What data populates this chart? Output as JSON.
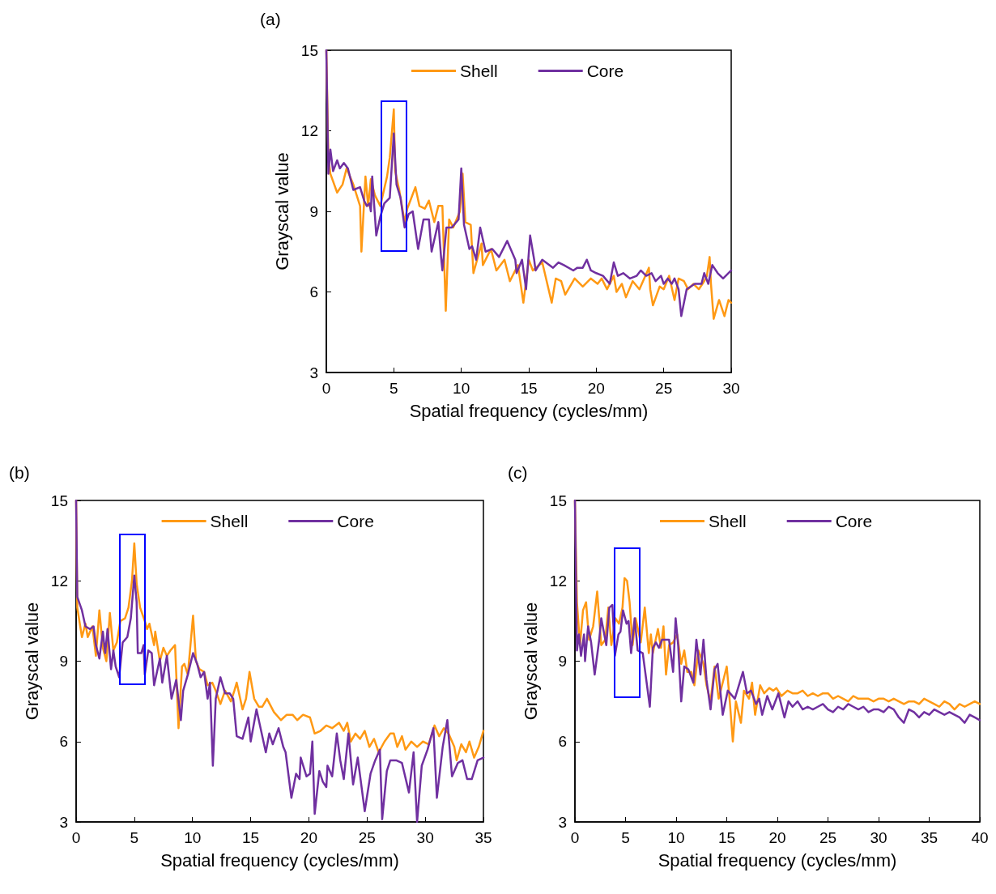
{
  "chart_data": [
    {
      "type": "line",
      "title": "(a)",
      "xlabel": "Spatial frequency (cycles/mm)",
      "ylabel": "Grayscal value",
      "xlim": [
        0,
        30
      ],
      "ylim": [
        3,
        15
      ],
      "xticks": [
        0,
        5,
        10,
        15,
        20,
        25,
        30
      ],
      "yticks": [
        3,
        6,
        9,
        12,
        15
      ],
      "legend": "top",
      "marker": "none",
      "line_style": "solid",
      "series": [
        {
          "name": "Shell",
          "color": "#ff9914",
          "x": [
            0,
            0.15,
            0.3,
            0.8,
            1.2,
            1.5,
            2.0,
            2.5,
            2.6,
            2.9,
            3.1,
            3.3,
            3.6,
            4.0,
            4.5,
            4.7,
            5.0,
            5.1,
            5.4,
            5.8,
            6.0,
            6.6,
            6.9,
            7.3,
            7.6,
            8.0,
            8.3,
            8.6,
            8.85,
            9.1,
            9.4,
            9.9,
            10.1,
            10.3,
            10.7,
            10.9,
            11.5,
            11.6,
            12.2,
            12.6,
            13.2,
            13.6,
            14.2,
            14.6,
            15.0,
            15.3,
            16.0,
            16.7,
            17.0,
            17.4,
            17.7,
            18.4,
            19.0,
            19.6,
            20.1,
            20.4,
            20.8,
            21.3,
            21.5,
            21.9,
            22.2,
            22.7,
            23.2,
            23.9,
            24.0,
            24.2,
            24.7,
            25.0,
            25.4,
            25.8,
            26.1,
            26.5,
            26.8,
            27.2,
            27.6,
            28.0,
            28.2,
            28.4,
            28.5,
            28.7,
            29.1,
            29.5,
            29.8,
            30
          ],
          "values": [
            15,
            11.0,
            10.4,
            9.7,
            10.0,
            10.6,
            10.0,
            9.2,
            7.5,
            10.3,
            9.2,
            10.2,
            9.6,
            9.2,
            10.3,
            11.0,
            12.8,
            10.5,
            9.8,
            8.6,
            9.1,
            9.9,
            9.2,
            9.1,
            9.4,
            8.6,
            9.2,
            9.2,
            5.3,
            8.7,
            8.4,
            9.0,
            10.4,
            8.6,
            8.5,
            6.7,
            7.8,
            7.0,
            7.6,
            6.8,
            7.2,
            6.4,
            7.0,
            5.6,
            7.2,
            6.8,
            7.1,
            5.6,
            6.5,
            6.4,
            5.9,
            6.5,
            6.2,
            6.5,
            6.3,
            6.5,
            6.1,
            6.6,
            6.0,
            6.3,
            5.8,
            6.4,
            6.1,
            6.9,
            6.1,
            5.5,
            6.2,
            6.1,
            6.6,
            5.7,
            6.5,
            6.4,
            6.1,
            6.3,
            6.1,
            6.4,
            6.6,
            7.3,
            6.3,
            5.0,
            5.7,
            5.1,
            5.7,
            5.6
          ]
        },
        {
          "name": "Core",
          "color": "#7030a0",
          "x": [
            0,
            0.15,
            0.3,
            0.5,
            0.8,
            1.0,
            1.3,
            1.6,
            2.0,
            2.5,
            2.8,
            3.0,
            3.2,
            3.3,
            3.4,
            3.7,
            4.0,
            4.3,
            4.7,
            5.0,
            5.2,
            5.5,
            5.8,
            6.1,
            6.4,
            6.8,
            7.2,
            7.6,
            7.8,
            8.3,
            8.5,
            8.6,
            8.9,
            9.3,
            9.8,
            10.0,
            10.2,
            10.6,
            10.8,
            11.1,
            11.4,
            11.8,
            12.3,
            12.8,
            13.2,
            13.4,
            14.0,
            14.1,
            14.5,
            14.8,
            15.1,
            15.4,
            15.5,
            16.0,
            16.8,
            17.2,
            17.6,
            18.3,
            18.6,
            19.0,
            19.3,
            19.6,
            20.0,
            20.5,
            21.0,
            21.3,
            21.6,
            22.0,
            22.5,
            23.0,
            23.3,
            23.7,
            24.1,
            24.4,
            24.8,
            25.0,
            25.3,
            25.6,
            25.8,
            26.1,
            26.3,
            26.7,
            27.3,
            27.8,
            28.0,
            28.3,
            28.6,
            29.0,
            29.4,
            30
          ],
          "values": [
            15,
            10.4,
            11.3,
            10.5,
            10.9,
            10.6,
            10.8,
            10.6,
            9.8,
            9.9,
            9.4,
            9.2,
            9.3,
            9.0,
            10.3,
            8.1,
            8.8,
            9.3,
            9.5,
            11.9,
            10.0,
            9.5,
            8.4,
            8.9,
            9.0,
            7.6,
            8.7,
            8.7,
            7.5,
            8.6,
            7.3,
            6.8,
            8.4,
            8.4,
            8.7,
            10.6,
            8.5,
            7.6,
            7.7,
            7.2,
            8.4,
            7.5,
            7.6,
            7.3,
            7.7,
            7.9,
            7.2,
            6.7,
            7.2,
            6.1,
            8.1,
            7.2,
            6.8,
            7.2,
            6.9,
            7.1,
            7.0,
            6.8,
            6.9,
            6.9,
            7.2,
            6.8,
            6.7,
            6.6,
            6.3,
            7.1,
            6.6,
            6.7,
            6.5,
            6.6,
            6.8,
            6.6,
            6.7,
            6.4,
            6.6,
            6.3,
            6.5,
            6.3,
            6.5,
            6.1,
            5.1,
            6.1,
            6.3,
            6.3,
            6.7,
            6.3,
            7.0,
            6.7,
            6.5,
            6.8
          ]
        }
      ]
    },
    {
      "type": "line",
      "title": "(b)",
      "xlabel": "Spatial frequency (cycles/mm)",
      "ylabel": "Grayscal value",
      "xlim": [
        0,
        35
      ],
      "ylim": [
        3,
        15
      ],
      "xticks": [
        0,
        5,
        10,
        15,
        20,
        25,
        30,
        35
      ],
      "yticks": [
        3,
        6,
        9,
        12,
        15
      ],
      "legend": "top",
      "marker": "none",
      "line_style": "solid",
      "series": [
        {
          "name": "Shell",
          "color": "#ff9914",
          "x": [
            0,
            0.1,
            0.5,
            0.8,
            1.0,
            1.4,
            1.7,
            2.0,
            2.3,
            2.6,
            2.9,
            3.2,
            3.5,
            3.8,
            4.2,
            4.5,
            4.8,
            5.0,
            5.2,
            5.5,
            5.9,
            6.1,
            6.3,
            6.5,
            6.7,
            6.8,
            7.2,
            7.5,
            7.8,
            8.1,
            8.5,
            8.8,
            9.1,
            9.3,
            9.6,
            10.05,
            10.3,
            10.6,
            11.0,
            11.3,
            11.7,
            12.0,
            12.4,
            12.8,
            13.3,
            13.6,
            13.8,
            14.3,
            14.6,
            14.9,
            15.3,
            15.7,
            16.0,
            16.4,
            17.0,
            17.6,
            18.1,
            18.6,
            19.0,
            19.5,
            20.1,
            20.5,
            21.0,
            21.5,
            22.0,
            22.6,
            23.0,
            23.3,
            23.6,
            24.0,
            24.4,
            24.8,
            25.2,
            25.6,
            26.0,
            26.5,
            27.0,
            27.3,
            27.6,
            28.0,
            28.3,
            28.8,
            29.3,
            29.8,
            30.3,
            30.8,
            31.2,
            31.6,
            32.0,
            32.5,
            32.7,
            33.1,
            33.5,
            33.8,
            34.2,
            34.6,
            35
          ],
          "values": [
            15,
            11.0,
            9.9,
            10.4,
            9.9,
            10.3,
            9.2,
            10.9,
            9.5,
            9.0,
            10.8,
            9.4,
            9.7,
            10.5,
            10.6,
            11.0,
            12.0,
            13.4,
            11.9,
            11.0,
            10.5,
            10.2,
            10.4,
            10.0,
            9.6,
            10.1,
            9.0,
            9.5,
            9.2,
            9.4,
            9.6,
            6.5,
            8.8,
            8.9,
            8.5,
            10.7,
            9.0,
            8.7,
            8.6,
            8.1,
            8.2,
            7.9,
            7.4,
            7.9,
            7.5,
            7.9,
            8.2,
            7.2,
            7.6,
            8.6,
            7.6,
            7.3,
            7.3,
            7.6,
            7.1,
            6.8,
            7.0,
            7.0,
            6.8,
            7.0,
            6.9,
            6.3,
            6.4,
            6.6,
            6.5,
            6.7,
            6.4,
            6.7,
            6.0,
            6.3,
            6.1,
            6.4,
            5.8,
            6.1,
            5.6,
            6.0,
            6.3,
            6.3,
            5.8,
            6.2,
            5.7,
            6.0,
            5.8,
            6.0,
            5.9,
            6.6,
            6.2,
            6.5,
            6.3,
            5.8,
            5.3,
            5.9,
            5.6,
            6.0,
            5.4,
            5.8,
            6.4
          ]
        },
        {
          "name": "Core",
          "color": "#7030a0",
          "x": [
            0,
            0.1,
            0.5,
            0.8,
            1.2,
            1.5,
            1.7,
            2.0,
            2.3,
            2.5,
            2.7,
            3.0,
            3.2,
            3.4,
            3.7,
            4.0,
            4.4,
            4.7,
            5.0,
            5.2,
            5.3,
            5.6,
            5.8,
            5.9,
            6.2,
            6.5,
            6.7,
            7.2,
            7.4,
            7.8,
            8.2,
            8.6,
            9.0,
            9.2,
            9.6,
            10.05,
            10.4,
            10.7,
            11.0,
            11.3,
            11.5,
            11.75,
            12.0,
            12.4,
            12.8,
            13.2,
            13.5,
            13.8,
            14.3,
            14.8,
            15.0,
            15.5,
            15.8,
            16.3,
            16.6,
            16.9,
            17.4,
            17.8,
            18.0,
            18.5,
            18.9,
            19.2,
            19.3,
            19.8,
            20.1,
            20.3,
            20.5,
            20.9,
            21.2,
            21.5,
            21.6,
            22.0,
            22.4,
            22.7,
            23.0,
            23.4,
            23.8,
            24.2,
            24.8,
            25.3,
            25.7,
            26.1,
            26.3,
            26.7,
            27.0,
            27.5,
            28.0,
            28.6,
            29.0,
            29.3,
            29.7,
            30.2,
            30.7,
            31.0,
            31.5,
            31.9,
            32.3,
            32.8,
            33.2,
            33.6,
            34.0,
            34.5,
            35
          ],
          "values": [
            15,
            11.4,
            10.9,
            10.3,
            10.2,
            10.3,
            9.6,
            9.1,
            10.1,
            9.3,
            10.2,
            8.7,
            9.4,
            8.8,
            8.4,
            9.7,
            9.9,
            10.6,
            12.2,
            11.2,
            9.3,
            9.3,
            9.6,
            8.5,
            9.4,
            9.3,
            8.1,
            9.1,
            8.2,
            9.2,
            7.6,
            8.3,
            6.8,
            7.9,
            8.5,
            9.3,
            8.9,
            8.4,
            8.6,
            7.6,
            8.2,
            5.1,
            7.6,
            8.4,
            7.8,
            7.8,
            7.6,
            6.2,
            6.1,
            6.9,
            6.0,
            7.2,
            6.6,
            5.6,
            6.3,
            5.9,
            6.5,
            5.8,
            5.6,
            3.9,
            4.8,
            4.6,
            5.4,
            4.7,
            4.8,
            6.0,
            3.3,
            4.9,
            4.5,
            4.3,
            5.1,
            4.7,
            6.3,
            5.3,
            4.6,
            6.3,
            4.4,
            5.4,
            3.4,
            4.8,
            5.3,
            5.7,
            3.1,
            4.9,
            5.3,
            5.3,
            5.2,
            4.1,
            5.6,
            3.0,
            5.1,
            5.7,
            6.5,
            3.9,
            5.8,
            6.8,
            4.7,
            5.2,
            5.3,
            4.6,
            4.6,
            5.3,
            5.4
          ]
        }
      ]
    },
    {
      "type": "line",
      "title": "(c)",
      "xlabel": "Spatial frequency (cycles/mm)",
      "ylabel": "Grayscal value",
      "xlim": [
        0,
        40
      ],
      "ylim": [
        3,
        15
      ],
      "xticks": [
        0,
        5,
        10,
        15,
        20,
        25,
        30,
        35,
        40
      ],
      "yticks": [
        3,
        6,
        9,
        12,
        15
      ],
      "legend": "top",
      "marker": "none",
      "line_style": "solid",
      "series": [
        {
          "name": "Shell",
          "color": "#ff9914",
          "x": [
            0,
            0.2,
            0.5,
            0.8,
            1.1,
            1.4,
            1.8,
            2.2,
            2.6,
            3.0,
            3.3,
            3.6,
            4.0,
            4.35,
            4.7,
            4.9,
            5.15,
            5.4,
            5.7,
            6.0,
            6.5,
            6.9,
            7.3,
            7.5,
            7.7,
            8.2,
            8.5,
            8.75,
            9.0,
            9.3,
            9.7,
            10.1,
            10.5,
            10.8,
            11.1,
            11.5,
            11.8,
            12.2,
            12.7,
            13.0,
            13.4,
            13.8,
            14.2,
            14.6,
            15.0,
            15.3,
            15.6,
            15.9,
            16.4,
            16.7,
            17.2,
            17.5,
            17.8,
            18.3,
            18.7,
            19.2,
            19.6,
            19.9,
            20.4,
            21.0,
            21.5,
            22.0,
            22.5,
            23.0,
            23.5,
            24.0,
            24.5,
            25.0,
            25.5,
            26.0,
            26.5,
            27.0,
            27.5,
            28.0,
            28.5,
            29.0,
            29.5,
            30.0,
            30.5,
            31.0,
            31.5,
            32.0,
            32.5,
            33.0,
            33.5,
            34.0,
            34.5,
            35.0,
            35.5,
            36.0,
            36.5,
            37.0,
            37.5,
            38.0,
            38.5,
            39.0,
            39.5,
            40
          ],
          "values": [
            15,
            11.2,
            9.6,
            10.9,
            11.2,
            9.8,
            10.3,
            11.6,
            9.6,
            9.8,
            11.0,
            9.6,
            10.6,
            10.4,
            11.0,
            12.1,
            12.0,
            11.2,
            9.6,
            10.6,
            9.7,
            11.0,
            9.3,
            10.0,
            9.3,
            10.2,
            9.5,
            10.3,
            8.5,
            9.6,
            9.7,
            10.0,
            8.9,
            9.4,
            8.6,
            8.6,
            8.1,
            9.4,
            8.9,
            8.1,
            7.5,
            8.8,
            7.6,
            8.2,
            8.8,
            7.5,
            6.0,
            7.5,
            6.7,
            7.9,
            7.6,
            8.2,
            7.0,
            8.1,
            7.8,
            8.0,
            7.9,
            8.0,
            7.7,
            7.9,
            7.8,
            7.8,
            7.9,
            7.7,
            7.8,
            7.7,
            7.8,
            7.8,
            7.6,
            7.7,
            7.6,
            7.5,
            7.7,
            7.6,
            7.6,
            7.6,
            7.5,
            7.6,
            7.6,
            7.5,
            7.6,
            7.5,
            7.4,
            7.5,
            7.5,
            7.4,
            7.6,
            7.5,
            7.4,
            7.3,
            7.5,
            7.4,
            7.2,
            7.4,
            7.3,
            7.4,
            7.5,
            7.4
          ]
        },
        {
          "name": "Core",
          "color": "#7030a0",
          "x": [
            0,
            0.2,
            0.4,
            0.6,
            0.9,
            1.0,
            1.3,
            1.6,
            1.95,
            2.4,
            2.6,
            3.1,
            3.4,
            3.7,
            3.95,
            4.3,
            4.5,
            4.75,
            5.1,
            5.3,
            5.55,
            5.9,
            6.2,
            6.7,
            7.4,
            7.7,
            8.0,
            8.3,
            8.6,
            9.3,
            9.7,
            9.95,
            10.2,
            10.5,
            10.8,
            11.2,
            11.7,
            12.0,
            12.4,
            12.7,
            13.0,
            13.4,
            13.8,
            14.1,
            14.6,
            15.1,
            15.8,
            16.6,
            17.0,
            17.4,
            17.9,
            18.2,
            18.5,
            19.0,
            19.5,
            20.1,
            20.7,
            21.1,
            21.5,
            22.0,
            22.5,
            23.0,
            23.5,
            24.0,
            24.5,
            25.0,
            25.5,
            26.0,
            26.5,
            27.0,
            27.5,
            28.0,
            28.5,
            29.0,
            29.5,
            30.0,
            30.5,
            31.0,
            31.5,
            32.0,
            32.5,
            33.0,
            33.5,
            34.0,
            34.5,
            35.0,
            35.5,
            36.0,
            36.5,
            37.0,
            37.5,
            38.0,
            38.5,
            39.0,
            39.5,
            40
          ],
          "values": [
            15,
            9.4,
            10.0,
            9.2,
            10.0,
            9.0,
            10.3,
            9.7,
            8.5,
            9.8,
            10.6,
            9.6,
            11.0,
            11.1,
            9.2,
            10.0,
            10.1,
            10.9,
            10.4,
            10.5,
            9.3,
            10.6,
            9.4,
            9.3,
            7.3,
            9.5,
            9.7,
            9.5,
            9.8,
            9.8,
            8.6,
            10.6,
            9.6,
            7.5,
            8.8,
            8.7,
            8.2,
            9.8,
            8.5,
            9.8,
            8.3,
            7.2,
            8.7,
            8.9,
            7.0,
            7.9,
            7.6,
            8.6,
            7.8,
            7.9,
            7.4,
            7.6,
            7.0,
            7.7,
            7.2,
            7.8,
            6.9,
            7.5,
            7.3,
            7.5,
            7.2,
            7.3,
            7.2,
            7.3,
            7.4,
            7.2,
            7.1,
            7.3,
            7.2,
            7.4,
            7.3,
            7.2,
            7.3,
            7.1,
            7.2,
            7.2,
            7.1,
            7.3,
            7.2,
            6.9,
            6.7,
            7.2,
            7.1,
            6.9,
            7.1,
            7.0,
            7.2,
            7.1,
            7.0,
            7.1,
            7.0,
            6.9,
            6.7,
            7.0,
            6.9,
            6.8
          ]
        }
      ]
    }
  ]
}
